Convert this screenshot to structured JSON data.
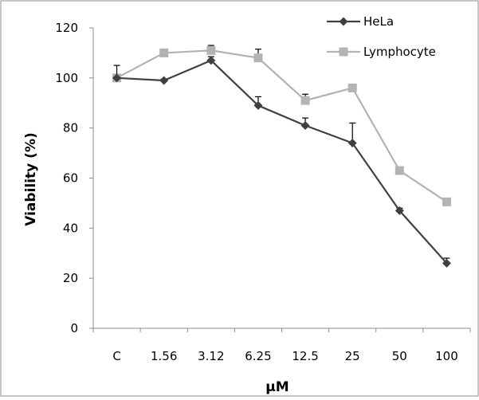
{
  "chart_data": {
    "type": "line",
    "title": "",
    "xlabel": "µM",
    "ylabel": "Viability (%)",
    "categories": [
      "C",
      "1.56",
      "3.12",
      "6.25",
      "12.5",
      "25",
      "50",
      "100"
    ],
    "ylim": [
      0,
      120
    ],
    "yticks": [
      0,
      20,
      40,
      60,
      80,
      100,
      120
    ],
    "grid": false,
    "legend_position": "top-right",
    "series": [
      {
        "name": "HeLa",
        "color": "#404040",
        "marker": "diamond",
        "values": [
          100,
          99,
          107,
          89,
          81,
          74,
          47,
          26
        ],
        "error": [
          5,
          0.5,
          1.5,
          3.5,
          3,
          8,
          1,
          2
        ]
      },
      {
        "name": "Lymphocyte",
        "color": "#b3b3b3",
        "marker": "square",
        "values": [
          100,
          110,
          111,
          108,
          91,
          96,
          63,
          50.5
        ],
        "error": [
          0.5,
          1.5,
          2,
          3.5,
          2.5,
          1.5,
          0.5,
          0.5
        ]
      }
    ]
  }
}
